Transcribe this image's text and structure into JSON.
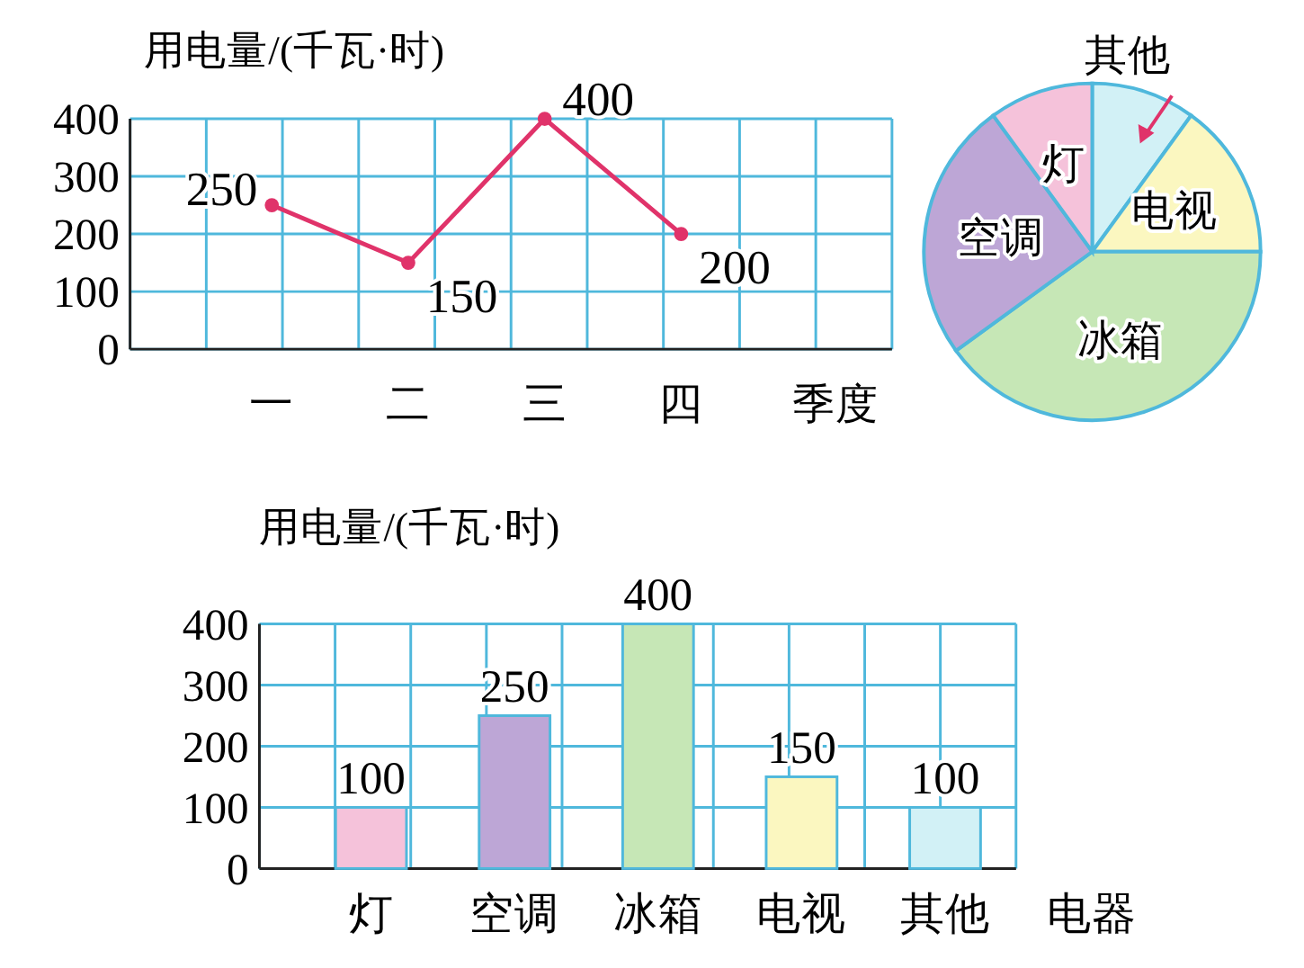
{
  "chart_data": [
    {
      "type": "line",
      "ylabel": "用电量/(千瓦·时)",
      "xlabel": "季度",
      "categories": [
        "一",
        "二",
        "三",
        "四"
      ],
      "values": [
        250,
        150,
        400,
        200
      ],
      "color": "#e0336a",
      "ylim": [
        0,
        400
      ],
      "yticks": [
        0,
        100,
        200,
        300,
        400
      ],
      "grid": true,
      "data_labels": true,
      "marker": "circle"
    },
    {
      "type": "pie",
      "categories": [
        "其他",
        "电视",
        "冰箱",
        "空调",
        "灯"
      ],
      "values": [
        10,
        15,
        40,
        25,
        10
      ],
      "colors": [
        "#d2f1f6",
        "#fbf7c0",
        "#c6e7b6",
        "#bda6d6",
        "#f5c2da"
      ]
    },
    {
      "type": "bar",
      "ylabel": "用电量/(千瓦·时)",
      "xlabel": "电器",
      "categories": [
        "灯",
        "空调",
        "冰箱",
        "电视",
        "其他"
      ],
      "values": [
        100,
        250,
        400,
        150,
        100
      ],
      "colors": [
        "#f5c2da",
        "#bda6d6",
        "#c6e7b6",
        "#fbf7c0",
        "#d2f1f6"
      ],
      "ylim": [
        0,
        400
      ],
      "yticks": [
        0,
        100,
        200,
        300,
        400
      ],
      "grid": true,
      "data_labels": true
    }
  ]
}
